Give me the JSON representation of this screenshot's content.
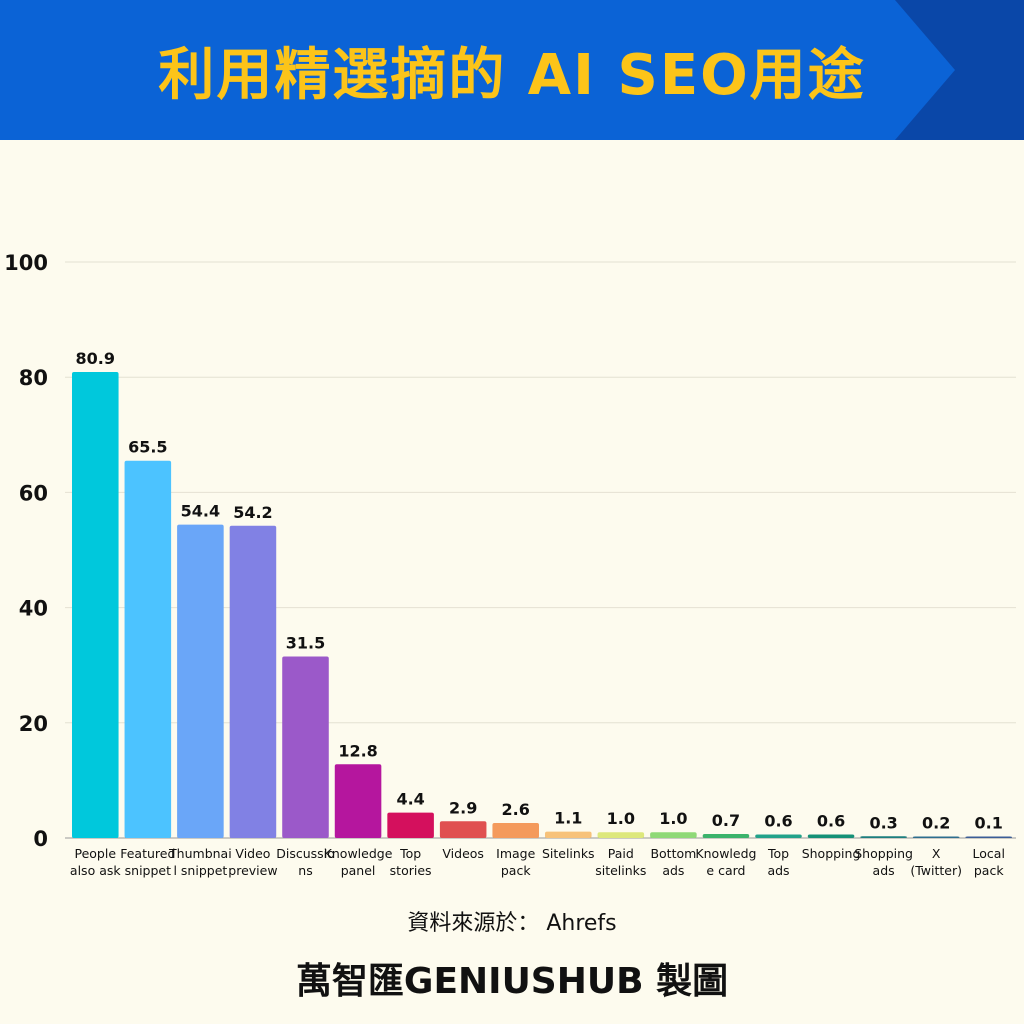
{
  "header": {
    "title": "利用精選摘的  AI SEO用途"
  },
  "footer": {
    "source": "資料來源於： Ahrefs",
    "brand": "萬智匯GENIUSHUB 製圖"
  },
  "colors": {
    "banner": "#0b63d6",
    "banner_dark": "#0a47a8",
    "title": "#fcc419",
    "background": "#fdfbee"
  },
  "chart_data": {
    "type": "bar",
    "title": "",
    "xlabel": "",
    "ylabel": "",
    "ylim": [
      0,
      100
    ],
    "yticks": [
      0,
      20,
      40,
      60,
      80,
      100
    ],
    "grid": true,
    "categories": [
      [
        "People",
        "also ask"
      ],
      [
        "Featured",
        "snippet"
      ],
      [
        "Thumbnai",
        "l snippet"
      ],
      [
        "Video",
        "preview"
      ],
      [
        "Discussio",
        "ns"
      ],
      [
        "Knowledge",
        "panel"
      ],
      [
        "Top",
        "stories"
      ],
      [
        "Videos"
      ],
      [
        "Image",
        "pack"
      ],
      [
        "Sitelinks"
      ],
      [
        "Paid",
        "sitelinks"
      ],
      [
        "Bottom",
        "ads"
      ],
      [
        "Knowledg",
        "e card"
      ],
      [
        "Top",
        "ads"
      ],
      [
        "Shopping"
      ],
      [
        "Shopping",
        "ads"
      ],
      [
        "X",
        "(Twitter)"
      ],
      [
        "Local",
        "pack"
      ]
    ],
    "values": [
      80.9,
      65.5,
      54.4,
      54.2,
      31.5,
      12.8,
      4.4,
      2.9,
      2.6,
      1.1,
      1.0,
      1.0,
      0.7,
      0.6,
      0.6,
      0.3,
      0.2,
      0.1
    ],
    "labels": [
      "80.9",
      "65.5",
      "54.4",
      "54.2",
      "31.5",
      "12.8",
      "4.4",
      "2.9",
      "2.6",
      "1.1",
      "1.0",
      "1.0",
      "0.7",
      "0.6",
      "0.6",
      "0.3",
      "0.2",
      "0.1"
    ],
    "bar_colors": [
      "#00c8dc",
      "#4cc3ff",
      "#6aa6f8",
      "#8181e4",
      "#9b59c9",
      "#b5169e",
      "#d4105d",
      "#e05050",
      "#f49a5c",
      "#f7c27a",
      "#dde87c",
      "#8fd977",
      "#3bb36b",
      "#22a28a",
      "#159177",
      "#1c7e7e",
      "#2d6e8e",
      "#3b5d96"
    ]
  }
}
